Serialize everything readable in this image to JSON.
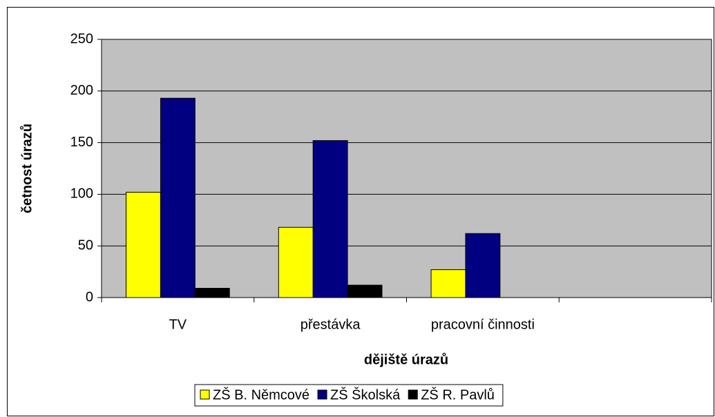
{
  "chart_data": {
    "type": "bar",
    "x_label": "dějiště úrazů",
    "y_label": "četnost úrazů",
    "categories": [
      "TV",
      "přestávka",
      "pracovní činnosti",
      null
    ],
    "series": [
      {
        "name": "ZŠ B. Němcové",
        "color": "#ffff00",
        "values": [
          102,
          68,
          27,
          null
        ]
      },
      {
        "name": "ZŠ Školská",
        "color": "#000080",
        "values": [
          193,
          152,
          62,
          null
        ]
      },
      {
        "name": "ZŠ R. Pavlů",
        "color": "#000000",
        "values": [
          9,
          12,
          null,
          null
        ]
      }
    ],
    "ylim": [
      0,
      250
    ],
    "yticks": [
      0,
      50,
      100,
      150,
      200,
      250
    ],
    "grid": true,
    "plot_background": "#c0c0c0",
    "legend": "bottom"
  }
}
